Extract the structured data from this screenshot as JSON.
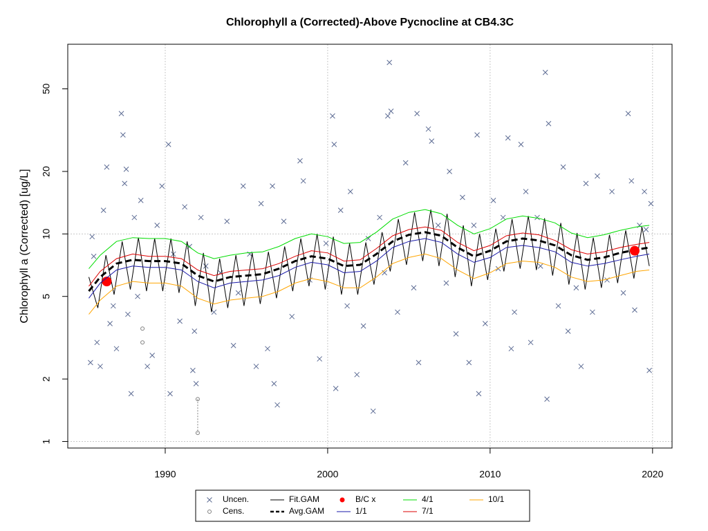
{
  "chart_data": {
    "type": "scatter-gam",
    "title": "Chlorophyll a (Corrected)-Above Pycnocline at CB4.3C",
    "y_label": "Chlorophyll a (Corrected) [ug/L]",
    "log_y": true,
    "grid": true,
    "legend": "bottom",
    "xlim": [
      1984,
      2021.2
    ],
    "ylim": [
      0.93,
      82
    ],
    "xticks": [
      1990,
      2000,
      2010,
      2020
    ],
    "yticks": [
      1,
      2,
      5,
      10,
      20,
      50
    ],
    "x": [
      1985.3,
      1986,
      1987,
      1988,
      1989,
      1990,
      1991,
      1992,
      1993,
      1994,
      1995,
      1996,
      1997,
      1998,
      1999,
      2000,
      2001,
      2002,
      2003,
      2004,
      2005,
      2006,
      2007,
      2008,
      2009,
      2010,
      2011,
      2012,
      2013,
      2014,
      2015,
      2016,
      2017,
      2018,
      2019,
      2019.8
    ],
    "series": [
      {
        "name": "Uncen.",
        "color": "#5c6b93",
        "marker": "x",
        "x": [
          1985.4,
          1985.5,
          1985.6,
          1985.8,
          1986.0,
          1986.2,
          1986.4,
          1986.6,
          1986.8,
          1987.0,
          1987.3,
          1987.4,
          1987.5,
          1987.6,
          1987.7,
          1987.9,
          1988.1,
          1988.3,
          1988.5,
          1988.9,
          1989.2,
          1989.5,
          1989.8,
          1990.2,
          1990.3,
          1990.5,
          1990.9,
          1991.2,
          1991.5,
          1991.7,
          1991.8,
          1991.9,
          1992.2,
          1992.5,
          1993,
          1993.4,
          1993.8,
          1994.2,
          1994.5,
          1994.8,
          1995.2,
          1995.6,
          1995.9,
          1996.3,
          1996.6,
          1996.7,
          1996.9,
          1997.3,
          1997.8,
          1998.3,
          1998.5,
          1998.9,
          1999.5,
          1999.9,
          2000.3,
          2000.4,
          2000.5,
          2000.8,
          2001.2,
          2001.4,
          2001.8,
          2002.2,
          2002.5,
          2002.8,
          2003.2,
          2003.5,
          2003.7,
          2003.8,
          2003.9,
          2004.3,
          2004.8,
          2005.3,
          2005.5,
          2005.6,
          2006.2,
          2006.4,
          2006.8,
          2007.3,
          2007.5,
          2007.9,
          2008.3,
          2008.7,
          2009,
          2009.2,
          2009.3,
          2009.7,
          2010.2,
          2010.5,
          2010.8,
          2011.1,
          2011.3,
          2011.5,
          2011.9,
          2012.2,
          2012.5,
          2012.9,
          2013.1,
          2013.4,
          2013.5,
          2013.6,
          2014.2,
          2014.5,
          2014.8,
          2015.3,
          2015.6,
          2015.9,
          2016.3,
          2016.6,
          2017.2,
          2017.5,
          2018.2,
          2018.5,
          2018.7,
          2018.9,
          2019.2,
          2019.5,
          2019.6,
          2019.8,
          2019.9
        ],
        "values": [
          2.4,
          9.7,
          7.8,
          3.0,
          2.3,
          13,
          21,
          3.7,
          4.5,
          2.8,
          38,
          30,
          17.5,
          20.5,
          4.1,
          1.7,
          12,
          5,
          14.5,
          2.3,
          2.6,
          11,
          17,
          27,
          1.7,
          8,
          3.8,
          13.5,
          8.7,
          2.2,
          3.4,
          1.9,
          12,
          7,
          4.2,
          6.5,
          11.5,
          2.9,
          5.2,
          17,
          8,
          2.3,
          14,
          2.8,
          17,
          1.9,
          1.5,
          11.5,
          4,
          22.5,
          18,
          6,
          2.5,
          9,
          37,
          27,
          1.8,
          13,
          4.5,
          16,
          2.1,
          3.6,
          9.5,
          1.4,
          12,
          6.5,
          37,
          67,
          39,
          4.2,
          22,
          5.5,
          38,
          2.4,
          32,
          28,
          11,
          5.8,
          20,
          3.3,
          15,
          2.4,
          11,
          30,
          1.7,
          3.7,
          14.5,
          6.8,
          12,
          29,
          2.8,
          4.2,
          27,
          16,
          3,
          12,
          7,
          60,
          1.6,
          34,
          4.5,
          21,
          3.4,
          5.5,
          2.3,
          17.5,
          4.2,
          19,
          6,
          16,
          5.2,
          38,
          18,
          4.3,
          11,
          16,
          10.5,
          2.2,
          14
        ]
      },
      {
        "name": "Cens.",
        "color": "#808080",
        "marker": "o",
        "x": [
          1988.6,
          1988.6,
          1992.0
        ],
        "values": [
          3.5,
          3.0,
          1.6
        ],
        "lower": [
          null,
          null,
          1.1
        ]
      },
      {
        "name": "Fit.GAM",
        "color": "#000000",
        "line": "solid",
        "x": [
          1985.3,
          1985.85,
          1986.35,
          1986.85,
          1987.35,
          1987.85,
          1988.35,
          1988.85,
          1989.35,
          1989.85,
          1990.35,
          1990.85,
          1991.35,
          1991.85,
          1992.35,
          1992.85,
          1993.35,
          1993.85,
          1994.35,
          1994.85,
          1995.35,
          1995.85,
          1996.35,
          1996.85,
          1997.35,
          1997.85,
          1998.35,
          1998.85,
          1999.35,
          1999.85,
          2000.35,
          2000.85,
          2001.35,
          2001.85,
          2002.35,
          2002.85,
          2003.35,
          2003.85,
          2004.35,
          2004.85,
          2005.35,
          2005.85,
          2006.35,
          2006.85,
          2007.35,
          2007.85,
          2008.35,
          2008.85,
          2009.35,
          2009.85,
          2010.35,
          2010.85,
          2011.35,
          2011.85,
          2012.35,
          2012.85,
          2013.35,
          2013.85,
          2014.35,
          2014.85,
          2015.35,
          2015.85,
          2016.35,
          2016.85,
          2017.35,
          2017.85,
          2018.35,
          2018.85,
          2019.35,
          2019.8
        ],
        "values": [
          6.2,
          4.4,
          7.9,
          5.1,
          9.2,
          5.4,
          9.6,
          5.3,
          9.5,
          5.3,
          9.5,
          5.2,
          9.2,
          4.5,
          8.1,
          4.2,
          7.6,
          4.4,
          7.9,
          4.5,
          8.1,
          4.6,
          8.2,
          4.9,
          8.7,
          5.3,
          9.5,
          5.6,
          10,
          5.4,
          9.7,
          5.1,
          9.0,
          5.1,
          9.1,
          5.7,
          10.2,
          6.6,
          11.8,
          7.1,
          12.7,
          7.4,
          13.1,
          7.0,
          12.5,
          6.2,
          11,
          5.6,
          10,
          6.0,
          10.6,
          6.6,
          11.8,
          6.8,
          12.2,
          6.7,
          11.9,
          6.3,
          11.3,
          5.7,
          10.1,
          5.4,
          9.6,
          5.5,
          9.9,
          5.8,
          10.4,
          6.1,
          10.8,
          7.0
        ]
      },
      {
        "name": "Avg.GAM",
        "color": "#000000",
        "line": "dashed",
        "values": [
          5.3,
          6.2,
          7.2,
          7.5,
          7.4,
          7.4,
          7.2,
          6.3,
          5.9,
          6.2,
          6.3,
          6.4,
          6.8,
          7.4,
          7.8,
          7.6,
          7.0,
          7.1,
          8.0,
          9.2,
          9.9,
          10.2,
          9.8,
          8.6,
          7.8,
          8.3,
          9.2,
          9.5,
          9.3,
          8.8,
          7.9,
          7.5,
          7.7,
          8.1,
          8.4,
          8.6
        ]
      },
      {
        "name": "B/C x",
        "color": "#ff0000",
        "marker": "dot",
        "x": [
          1986.4,
          2018.9
        ],
        "values": [
          5.9,
          8.3
        ]
      },
      {
        "name": "1/1",
        "color": "#1a1aa8",
        "line": "solid",
        "values": [
          4.9,
          5.8,
          6.7,
          7,
          6.9,
          6.9,
          6.7,
          5.9,
          5.5,
          5.8,
          5.9,
          6,
          6.3,
          6.9,
          7.3,
          7.1,
          6.5,
          6.6,
          7.4,
          8.6,
          9.2,
          9.5,
          9.1,
          8,
          7.3,
          7.7,
          8.6,
          8.8,
          8.6,
          8.2,
          7.3,
          7,
          7.2,
          7.5,
          7.8,
          8
        ]
      },
      {
        "name": "4/1",
        "color": "#00dd00",
        "line": "solid",
        "values": [
          6.8,
          7.9,
          9.2,
          9.6,
          9.5,
          9.5,
          9.2,
          8.1,
          7.6,
          7.9,
          8.1,
          8.2,
          8.7,
          9.5,
          10,
          9.7,
          9.0,
          9.1,
          10.2,
          11.8,
          12.7,
          13.1,
          12.5,
          11,
          10,
          10.6,
          11.8,
          12.2,
          11.9,
          11.3,
          10.1,
          9.6,
          9.9,
          10.4,
          10.8,
          11
        ]
      },
      {
        "name": "7/1",
        "color": "#dd0000",
        "line": "solid",
        "values": [
          5.6,
          6.6,
          7.6,
          8,
          7.8,
          7.8,
          7.6,
          6.7,
          6.3,
          6.6,
          6.7,
          6.8,
          7.2,
          7.8,
          8.3,
          8.1,
          7.4,
          7.5,
          8.5,
          9.8,
          10.5,
          10.8,
          10.4,
          9.1,
          8.3,
          8.8,
          9.8,
          10.1,
          9.9,
          9.3,
          8.4,
          8,
          8.2,
          8.6,
          8.9,
          9.1
        ]
      },
      {
        "name": "10/1",
        "color": "#ffa500",
        "line": "solid",
        "values": [
          4.1,
          4.8,
          5.6,
          5.9,
          5.8,
          5.8,
          5.6,
          4.9,
          4.6,
          4.8,
          4.9,
          5,
          5.3,
          5.8,
          6.1,
          5.9,
          5.5,
          5.5,
          6.2,
          7.2,
          7.7,
          8,
          7.6,
          6.7,
          6.1,
          6.5,
          7.2,
          7.4,
          7.3,
          6.9,
          6.2,
          5.9,
          6,
          6.3,
          6.6,
          6.7
        ]
      }
    ]
  }
}
